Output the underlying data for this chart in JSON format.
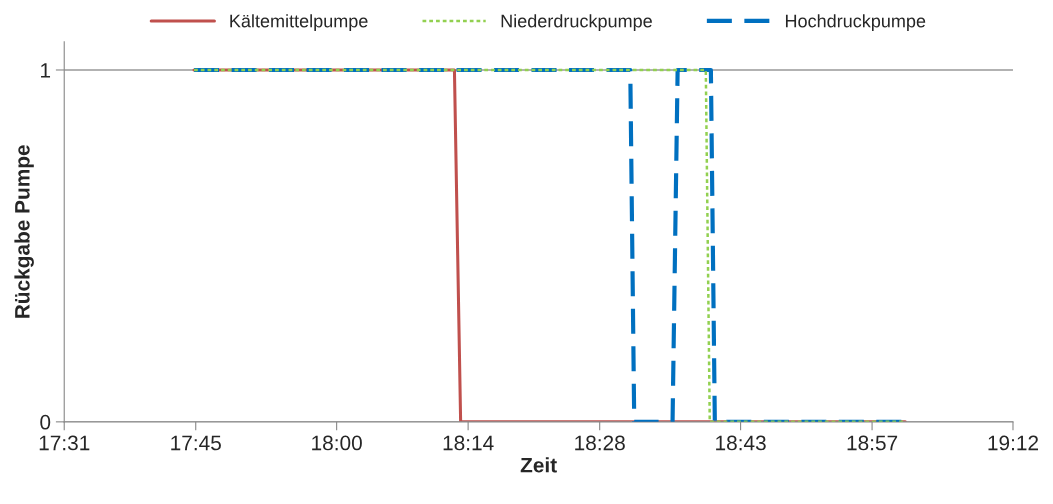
{
  "chart_data": {
    "type": "line",
    "xlabel": "Zeit",
    "ylabel": "Rückgabe Pumpe",
    "xlim": [
      17.5167,
      19.2
    ],
    "xticks": [
      {
        "value": 17.5167,
        "label": "17:31"
      },
      {
        "value": 17.75,
        "label": "17:45"
      },
      {
        "value": 18.0,
        "label": "18:00"
      },
      {
        "value": 18.2333,
        "label": "18:14"
      },
      {
        "value": 18.4667,
        "label": "18:28"
      },
      {
        "value": 18.7167,
        "label": "18:43"
      },
      {
        "value": 18.95,
        "label": "18:57"
      },
      {
        "value": 19.2,
        "label": "19:12"
      }
    ],
    "ylim": [
      0,
      1.08
    ],
    "yticks": [
      0,
      1
    ],
    "grid": "y",
    "legend": "top",
    "series": [
      {
        "name": "Kältemittelpumpe",
        "color": "#c0504d",
        "line_style": "solid",
        "x": [
          17.747,
          18.209,
          18.22,
          19.009
        ],
        "values": [
          1,
          1,
          0,
          0
        ]
      },
      {
        "name": "Niederdruckpumpe",
        "color": "#92d050",
        "line_style": "dotted",
        "x": [
          17.747,
          18.655,
          18.662,
          19.009
        ],
        "values": [
          1,
          1,
          0,
          0
        ]
      },
      {
        "name": "Hochdruckpumpe",
        "color": "#0070c0",
        "line_style": "dashed",
        "x": [
          17.747,
          18.521,
          18.528,
          18.596,
          18.605,
          18.664,
          18.671,
          19.009
        ],
        "values": [
          1,
          1,
          0,
          0,
          1,
          1,
          0,
          0
        ]
      }
    ]
  }
}
